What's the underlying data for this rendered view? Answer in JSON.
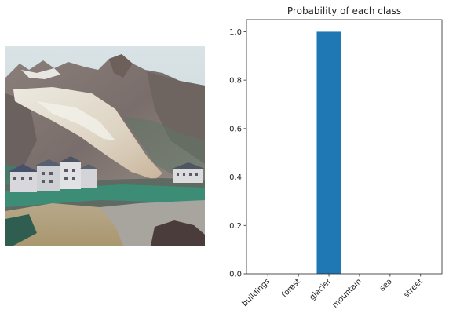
{
  "photo": {
    "icon": "glacier-valley-photo"
  },
  "chart_data": {
    "type": "bar",
    "title": "Probability of each class",
    "categories": [
      "buildings",
      "forest",
      "glacier",
      "mountain",
      "sea",
      "street"
    ],
    "values": [
      0.0,
      0.0,
      1.0,
      0.0,
      0.0,
      0.0
    ],
    "ylim": [
      0.0,
      1.05
    ],
    "yticks": [
      0.0,
      0.2,
      0.4,
      0.6,
      0.8,
      1.0
    ],
    "ytick_labels": [
      "0.0",
      "0.2",
      "0.4",
      "0.6",
      "0.8",
      "1.0"
    ],
    "xlabel": "",
    "ylabel": "",
    "bar_color": "#1f77b4",
    "grid": false,
    "legend": false
  }
}
